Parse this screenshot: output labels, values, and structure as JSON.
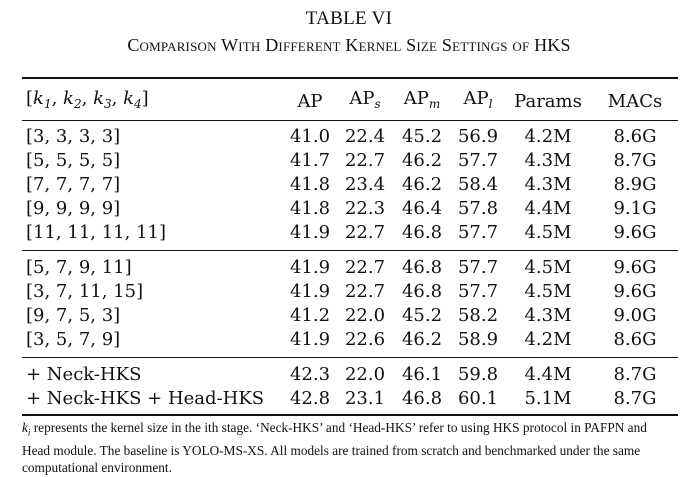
{
  "table": {
    "number": "TABLE VI",
    "caption": "Comparison With Different Kernel Size Settings of HKS"
  },
  "header": {
    "setting": "[k1, k2, k3, k4]",
    "ap": "AP",
    "aps_base": "AP",
    "aps_sub": "s",
    "apm_base": "AP",
    "apm_sub": "m",
    "apl_base": "AP",
    "apl_sub": "l",
    "params": "Params",
    "macs": "MACs"
  },
  "groups": [
    {
      "rows": [
        {
          "setting": "[3, 3, 3, 3]",
          "ap": "41.0",
          "aps": "22.4",
          "apm": "45.2",
          "apl": "56.9",
          "params": "4.2M",
          "macs": "8.6G"
        },
        {
          "setting": "[5, 5, 5, 5]",
          "ap": "41.7",
          "aps": "22.7",
          "apm": "46.2",
          "apl": "57.7",
          "params": "4.3M",
          "macs": "8.7G"
        },
        {
          "setting": "[7, 7, 7, 7]",
          "ap": "41.8",
          "aps": "23.4",
          "apm": "46.2",
          "apl": "58.4",
          "params": "4.3M",
          "macs": "8.9G"
        },
        {
          "setting": "[9, 9, 9, 9]",
          "ap": "41.8",
          "aps": "22.3",
          "apm": "46.4",
          "apl": "57.8",
          "params": "4.4M",
          "macs": "9.1G"
        },
        {
          "setting": "[11, 11, 11, 11]",
          "ap": "41.9",
          "aps": "22.7",
          "apm": "46.8",
          "apl": "57.7",
          "params": "4.5M",
          "macs": "9.6G"
        }
      ]
    },
    {
      "rows": [
        {
          "setting": "[5, 7, 9, 11]",
          "ap": "41.9",
          "aps": "22.7",
          "apm": "46.8",
          "apl": "57.7",
          "params": "4.5M",
          "macs": "9.6G"
        },
        {
          "setting": "[3, 7, 11, 15]",
          "ap": "41.9",
          "aps": "22.7",
          "apm": "46.8",
          "apl": "57.7",
          "params": "4.5M",
          "macs": "9.6G"
        },
        {
          "setting": "[9, 7, 5, 3]",
          "ap": "41.2",
          "aps": "22.0",
          "apm": "45.2",
          "apl": "58.2",
          "params": "4.3M",
          "macs": "9.0G"
        },
        {
          "setting": "[3, 5, 7, 9]",
          "ap": "41.9",
          "aps": "22.6",
          "apm": "46.2",
          "apl": "58.9",
          "params": "4.2M",
          "macs": "8.6G"
        }
      ]
    },
    {
      "rows": [
        {
          "setting": "+ Neck-HKS",
          "ap": "42.3",
          "aps": "22.0",
          "apm": "46.1",
          "apl": "59.8",
          "params": "4.4M",
          "macs": "8.7G"
        },
        {
          "setting": "+ Neck-HKS + Head-HKS",
          "ap": "42.8",
          "aps": "23.1",
          "apm": "46.8",
          "apl": "60.1",
          "params": "5.1M",
          "macs": "8.7G"
        }
      ]
    }
  ],
  "footnote": {
    "symbol": "k",
    "symbol_sub": "i",
    "text": " represents the kernel size in the ith stage. ‘Neck-HKS’ and ‘Head-HKS’ refer to using HKS protocol in PAFPN and Head module. The baseline is YOLO-MS-XS. All models are trained from scratch and benchmarked under the same computational environment."
  }
}
